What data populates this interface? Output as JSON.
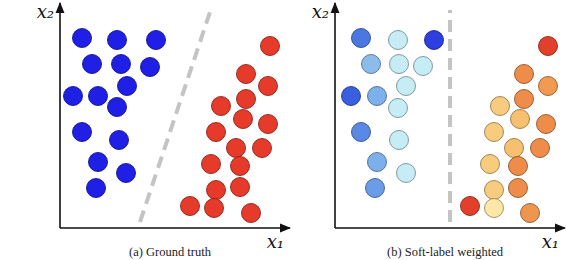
{
  "chart_data": [
    {
      "type": "scatter",
      "title": "(a) Ground truth",
      "x_label": "x₁",
      "y_label": "x₂",
      "xlim": [
        0,
        230
      ],
      "ylim": [
        0,
        225
      ],
      "tick_labels": false,
      "marker": "circle",
      "series": [
        {
          "type": "scatter",
          "color": "#1f1fe6",
          "x": [
            22,
            57,
            96,
            32,
            61,
            90,
            13,
            38,
            67,
            57,
            22,
            59,
            38,
            66,
            36
          ],
          "values": [
            190,
            188,
            188,
            164,
            164,
            161,
            132,
            132,
            142,
            121,
            96,
            88,
            66,
            55,
            40
          ]
        },
        {
          "type": "scatter",
          "color": "#e63a2a",
          "x": [
            210,
            186,
            208,
            186,
            161,
            183,
            208,
            156,
            176,
            202,
            151,
            180,
            156,
            180,
            130,
            154,
            191
          ],
          "values": [
            182,
            154,
            142,
            129,
            122,
            109,
            104,
            96,
            80,
            80,
            64,
            62,
            38,
            41,
            22,
            20,
            15
          ]
        },
        {
          "type": "line",
          "line_style": "dashed",
          "color": "#c4c4c4",
          "x": [
            80,
            150
          ],
          "values": [
            6,
            216
          ]
        }
      ]
    },
    {
      "type": "scatter",
      "title": "(b) Soft-label weighted",
      "x_label": "x₁",
      "y_label": "x₂",
      "xlim": [
        0,
        230
      ],
      "ylim": [
        0,
        225
      ],
      "tick_labels": false,
      "marker": "circle",
      "series": [
        {
          "type": "scatter",
          "colors": [
            "#4a78e0",
            "#c6ecf5",
            "#2d3fe0",
            "#8cbcec",
            "#c6ecf5",
            "#c6ecf5",
            "#3a5ee0",
            "#7cb0ea",
            "#c6ecf5",
            "#c6ecf5",
            "#5a88e4",
            "#c6ecf5",
            "#7cb0ea",
            "#c6ecf5",
            "#6a9ce8"
          ],
          "x": [
            26,
            63,
            99,
            36,
            64,
            88,
            16,
            42,
            71,
            63,
            26,
            64,
            42,
            71,
            40
          ],
          "values": [
            190,
            188,
            188,
            164,
            164,
            162,
            132,
            132,
            142,
            120,
            96,
            88,
            66,
            55,
            40
          ]
        },
        {
          "type": "scatter",
          "colors": [
            "#e2402a",
            "#ee8c4a",
            "#f09a52",
            "#ee8c4a",
            "#f8cc7e",
            "#f6c070",
            "#ee8c4a",
            "#f8cc7e",
            "#f6c070",
            "#ee8c4a",
            "#f8cc7e",
            "#ee8c4a",
            "#f8cc7e",
            "#ee8c4a",
            "#e2402a",
            "#fde6a6",
            "#ee9650"
          ],
          "x": [
            213,
            189,
            213,
            189,
            165,
            185,
            211,
            159,
            179,
            205,
            155,
            183,
            159,
            183,
            135,
            159,
            195
          ],
          "values": [
            182,
            154,
            142,
            129,
            122,
            109,
            104,
            96,
            80,
            80,
            64,
            62,
            38,
            40,
            22,
            20,
            15
          ]
        },
        {
          "type": "line",
          "line_style": "dashed",
          "color": "#c4c4c4",
          "x": [
            115,
            115
          ],
          "values": [
            6,
            218
          ]
        }
      ]
    }
  ]
}
